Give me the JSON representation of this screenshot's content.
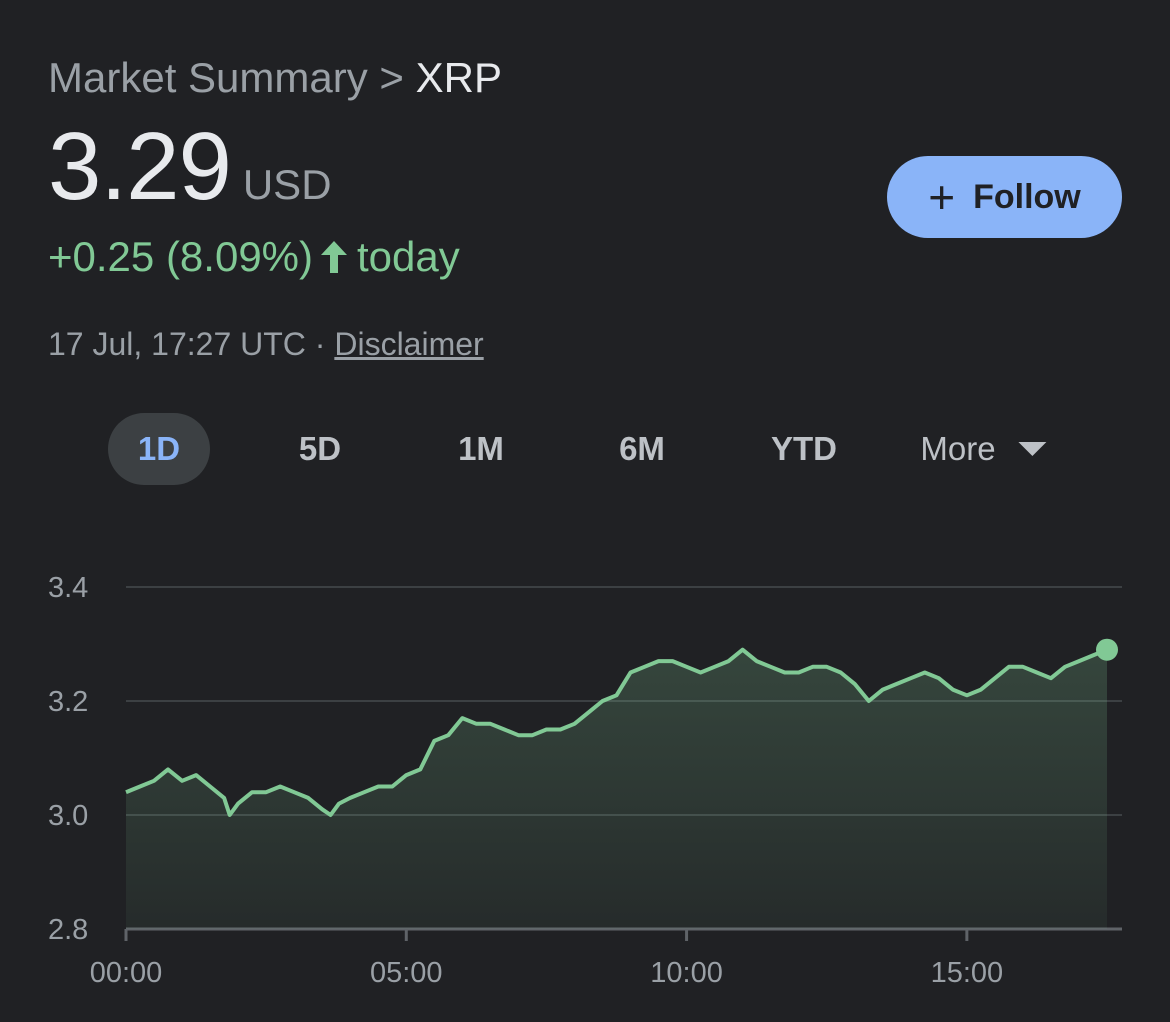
{
  "breadcrumb": {
    "parent": "Market Summary",
    "separator": ">",
    "current": "XRP"
  },
  "quote": {
    "price": "3.29",
    "currency": "USD",
    "change": "+0.25 (8.09%)",
    "change_period": "today",
    "timestamp": "17 Jul, 17:27 UTC ·",
    "disclaimer": "Disclaimer"
  },
  "follow": {
    "icon": "plus-icon",
    "label": "Follow"
  },
  "tabs": [
    {
      "label": "1D",
      "active": true
    },
    {
      "label": "5D",
      "active": false
    },
    {
      "label": "1M",
      "active": false
    },
    {
      "label": "6M",
      "active": false
    },
    {
      "label": "YTD",
      "active": false
    }
  ],
  "more_tab": {
    "label": "More",
    "icon": "caret-down-icon"
  },
  "colors": {
    "background": "#202124",
    "positive": "#81c995",
    "accent": "#8ab4f8",
    "gridline": "#3c4043"
  },
  "chart_data": {
    "type": "area",
    "title": "",
    "xlabel": "",
    "ylabel": "",
    "x_unit": "time of day (hours)",
    "xlim": [
      0,
      17.5
    ],
    "ylim": [
      2.8,
      3.4
    ],
    "y_ticks": [
      "3.4",
      "3.2",
      "3.0",
      "2.8"
    ],
    "y_tick_values": [
      3.4,
      3.2,
      3.0,
      2.8
    ],
    "x_ticks": [
      "00:00",
      "05:00",
      "10:00",
      "15:00"
    ],
    "x_tick_values": [
      0,
      5,
      10,
      15
    ],
    "grid": true,
    "series": [
      {
        "x": [
          0,
          0.25,
          0.5,
          0.75,
          1.0,
          1.25,
          1.5,
          1.75,
          1.85,
          2.0,
          2.25,
          2.5,
          2.75,
          3.0,
          3.25,
          3.5,
          3.65,
          3.8,
          4.0,
          4.25,
          4.5,
          4.75,
          5.0,
          5.25,
          5.5,
          5.75,
          6.0,
          6.25,
          6.5,
          6.75,
          7.0,
          7.25,
          7.5,
          7.75,
          8.0,
          8.25,
          8.5,
          8.75,
          9.0,
          9.25,
          9.5,
          9.75,
          10.0,
          10.25,
          10.5,
          10.75,
          11.0,
          11.25,
          11.5,
          11.75,
          12.0,
          12.25,
          12.5,
          12.75,
          13.0,
          13.25,
          13.5,
          13.75,
          14.0,
          14.25,
          14.5,
          14.75,
          15.0,
          15.25,
          15.5,
          15.75,
          16.0,
          16.25,
          16.5,
          16.75,
          17.0,
          17.25,
          17.5
        ],
        "values": [
          3.04,
          3.05,
          3.06,
          3.08,
          3.06,
          3.07,
          3.05,
          3.03,
          3.0,
          3.02,
          3.04,
          3.04,
          3.05,
          3.04,
          3.03,
          3.01,
          3.0,
          3.02,
          3.03,
          3.04,
          3.05,
          3.05,
          3.07,
          3.08,
          3.13,
          3.14,
          3.17,
          3.16,
          3.16,
          3.15,
          3.14,
          3.14,
          3.15,
          3.15,
          3.16,
          3.18,
          3.2,
          3.21,
          3.25,
          3.26,
          3.27,
          3.27,
          3.26,
          3.25,
          3.26,
          3.27,
          3.29,
          3.27,
          3.26,
          3.25,
          3.25,
          3.26,
          3.26,
          3.25,
          3.23,
          3.2,
          3.22,
          3.23,
          3.24,
          3.25,
          3.24,
          3.22,
          3.21,
          3.22,
          3.24,
          3.26,
          3.26,
          3.25,
          3.24,
          3.26,
          3.27,
          3.28,
          3.29
        ]
      }
    ]
  }
}
